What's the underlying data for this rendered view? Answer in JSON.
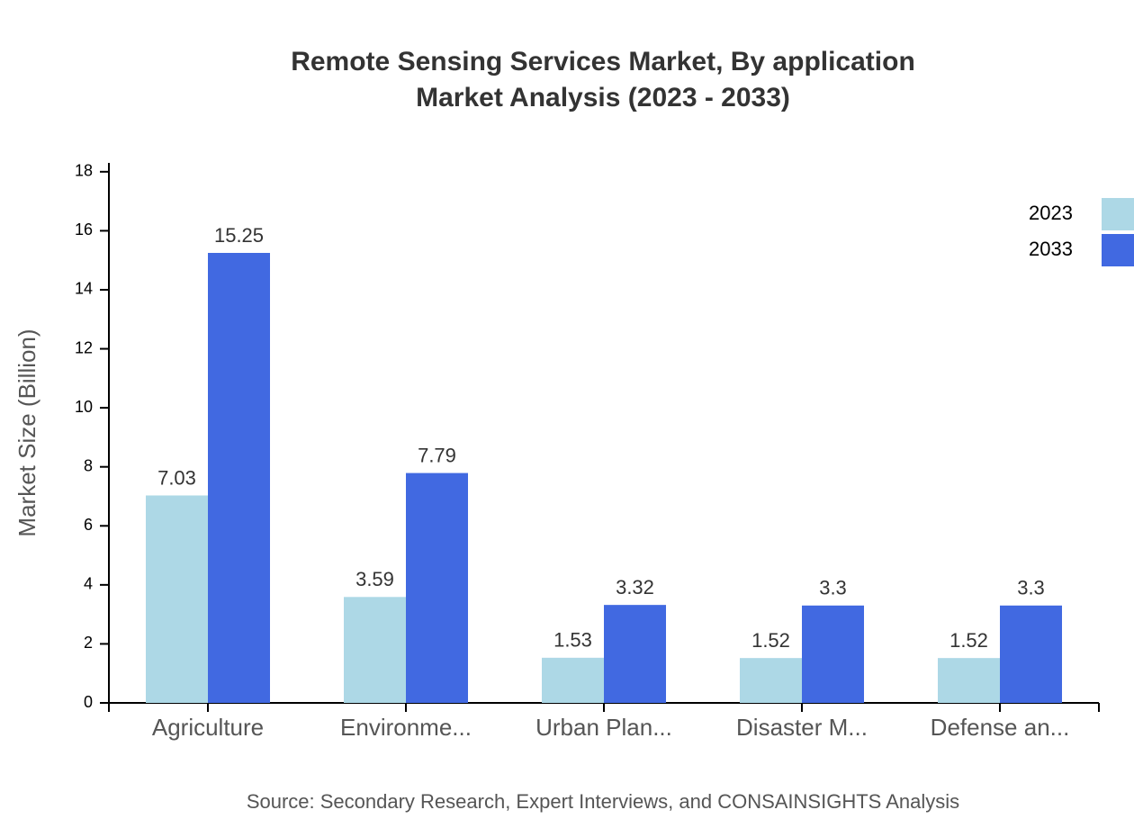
{
  "chart_data": {
    "type": "bar",
    "title": "Remote Sensing Services Market, By application",
    "subtitle": "Market Analysis (2023 - 2033)",
    "y_label": "Market Size (Billion)",
    "source": "Source: Secondary Research, Expert Interviews, and CONSAINSIGHTS Analysis",
    "categories": [
      "Agriculture",
      "Environme...",
      "Urban Plan...",
      "Disaster M...",
      "Defense an..."
    ],
    "series": [
      {
        "name": "2023",
        "color": "#add8e6",
        "values": [
          7.03,
          3.59,
          1.53,
          1.52,
          1.52
        ]
      },
      {
        "name": "2033",
        "color": "#4169e1",
        "values": [
          15.25,
          7.79,
          3.32,
          3.3,
          3.3
        ]
      }
    ],
    "ylim": [
      0,
      18.3
    ],
    "yticks": [
      0,
      2,
      4,
      6,
      8,
      10,
      12,
      14,
      16,
      18
    ],
    "legend": "top-right"
  }
}
